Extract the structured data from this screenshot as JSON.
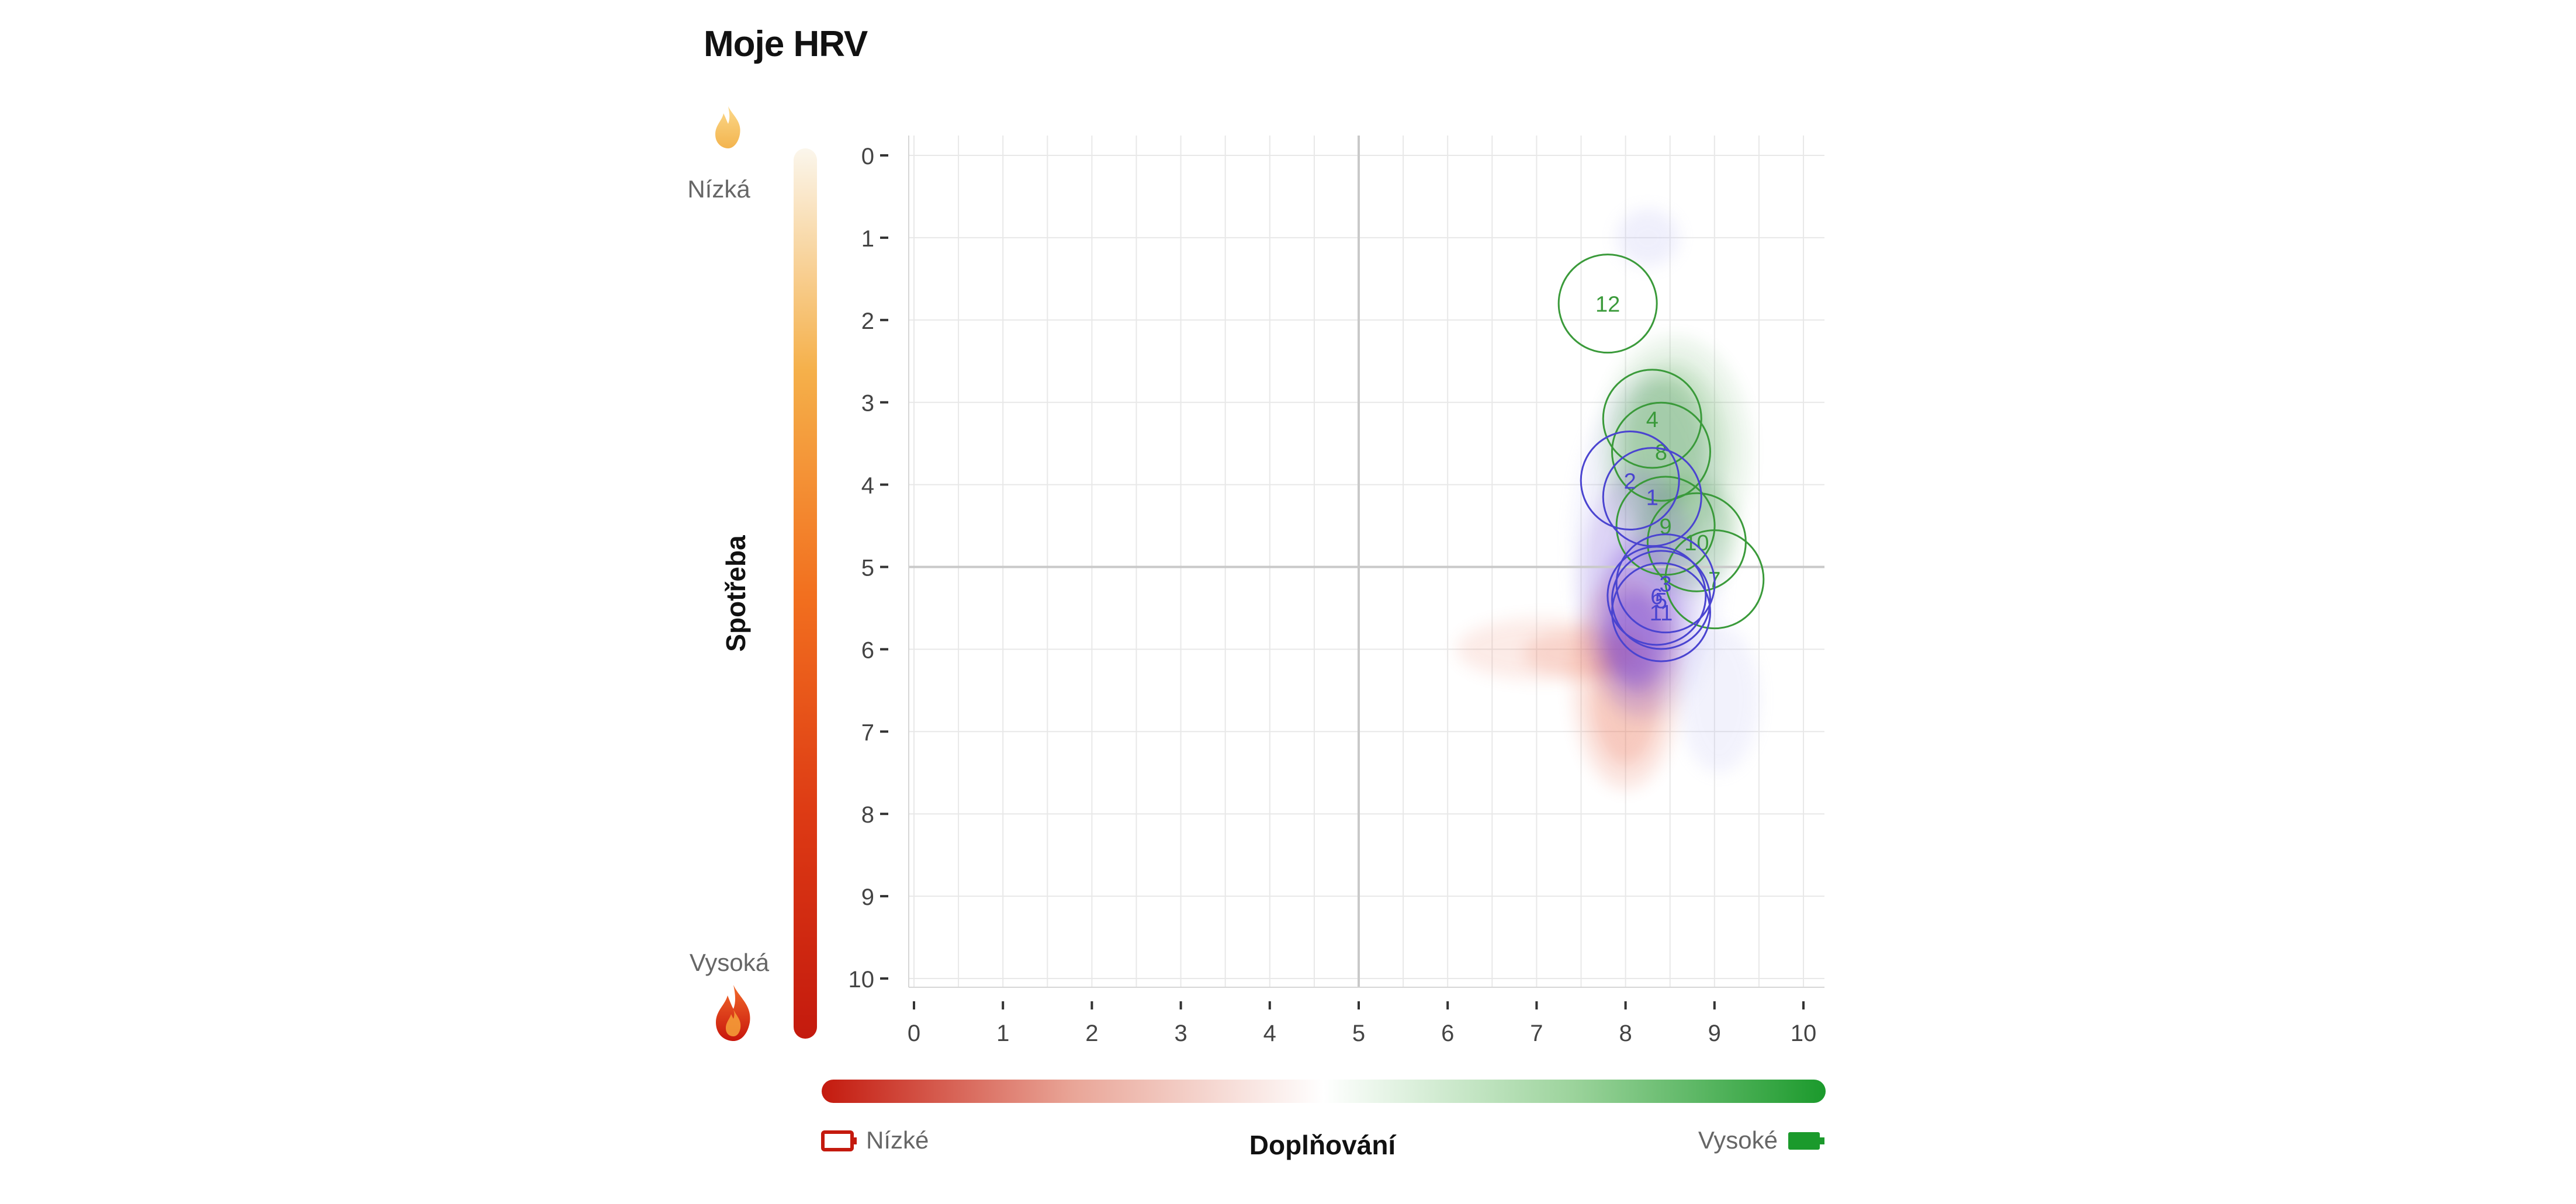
{
  "page": {
    "title": "Moje HRV"
  },
  "y_scale": {
    "label": "Spotřeba",
    "low_label": "Nízká",
    "high_label": "Vysoká",
    "low_icon": "flame-low-icon",
    "high_icon": "flame-high-icon",
    "gradient_colors": [
      "#fbf6ec",
      "#f5b04a",
      "#f2701f",
      "#dd3a14",
      "#c41a0e"
    ]
  },
  "x_scale": {
    "label": "Doplňování",
    "low_label": "Nízké",
    "high_label": "Vysoké",
    "low_icon": "battery-low-icon",
    "high_icon": "battery-full-icon",
    "gradient_colors": [
      "#c41a0e",
      "#e9a597",
      "#ffffff",
      "#9bd39b",
      "#1b9a2c"
    ]
  },
  "colors": {
    "green_series": "#3a9a3a",
    "blue_series": "#4a44d0",
    "red_density": "#e86040",
    "purple_density": "#7a4ad8",
    "green_density": "#3a9a3a",
    "lavender_density": "#a8a8ee",
    "gridline": "#e8e8e8",
    "midline": "#c9c9c9"
  },
  "chart_data": {
    "type": "scatter",
    "title": "Moje HRV",
    "xlabel": "Doplňování",
    "ylabel": "Spotřeba",
    "xlim": [
      0,
      10
    ],
    "ylim": [
      0,
      10
    ],
    "y_inverted": true,
    "xticks": [
      "0",
      "1",
      "2",
      "3",
      "4",
      "5",
      "6",
      "7",
      "8",
      "9",
      "10"
    ],
    "yticks": [
      "0",
      "1",
      "2",
      "3",
      "4",
      "5",
      "6",
      "7",
      "8",
      "9",
      "10"
    ],
    "midlines": {
      "x": 5,
      "y": 5
    },
    "grid": true,
    "series": [
      {
        "color": "green",
        "points": [
          {
            "label": "12",
            "x": 7.8,
            "y": 1.8
          },
          {
            "label": "4",
            "x": 8.3,
            "y": 3.2
          },
          {
            "label": "8",
            "x": 8.4,
            "y": 3.6
          },
          {
            "label": "9",
            "x": 8.45,
            "y": 4.5
          },
          {
            "label": "10",
            "x": 8.8,
            "y": 4.7
          },
          {
            "label": "7",
            "x": 9.0,
            "y": 5.15
          }
        ]
      },
      {
        "color": "blue",
        "points": [
          {
            "label": "2",
            "x": 8.05,
            "y": 3.95
          },
          {
            "label": "1",
            "x": 8.3,
            "y": 4.15
          },
          {
            "label": "3",
            "x": 8.45,
            "y": 5.2
          },
          {
            "label": "6",
            "x": 8.35,
            "y": 5.35
          },
          {
            "label": "5",
            "x": 8.4,
            "y": 5.4
          },
          {
            "label": "11",
            "x": 8.4,
            "y": 5.55
          }
        ]
      }
    ]
  }
}
